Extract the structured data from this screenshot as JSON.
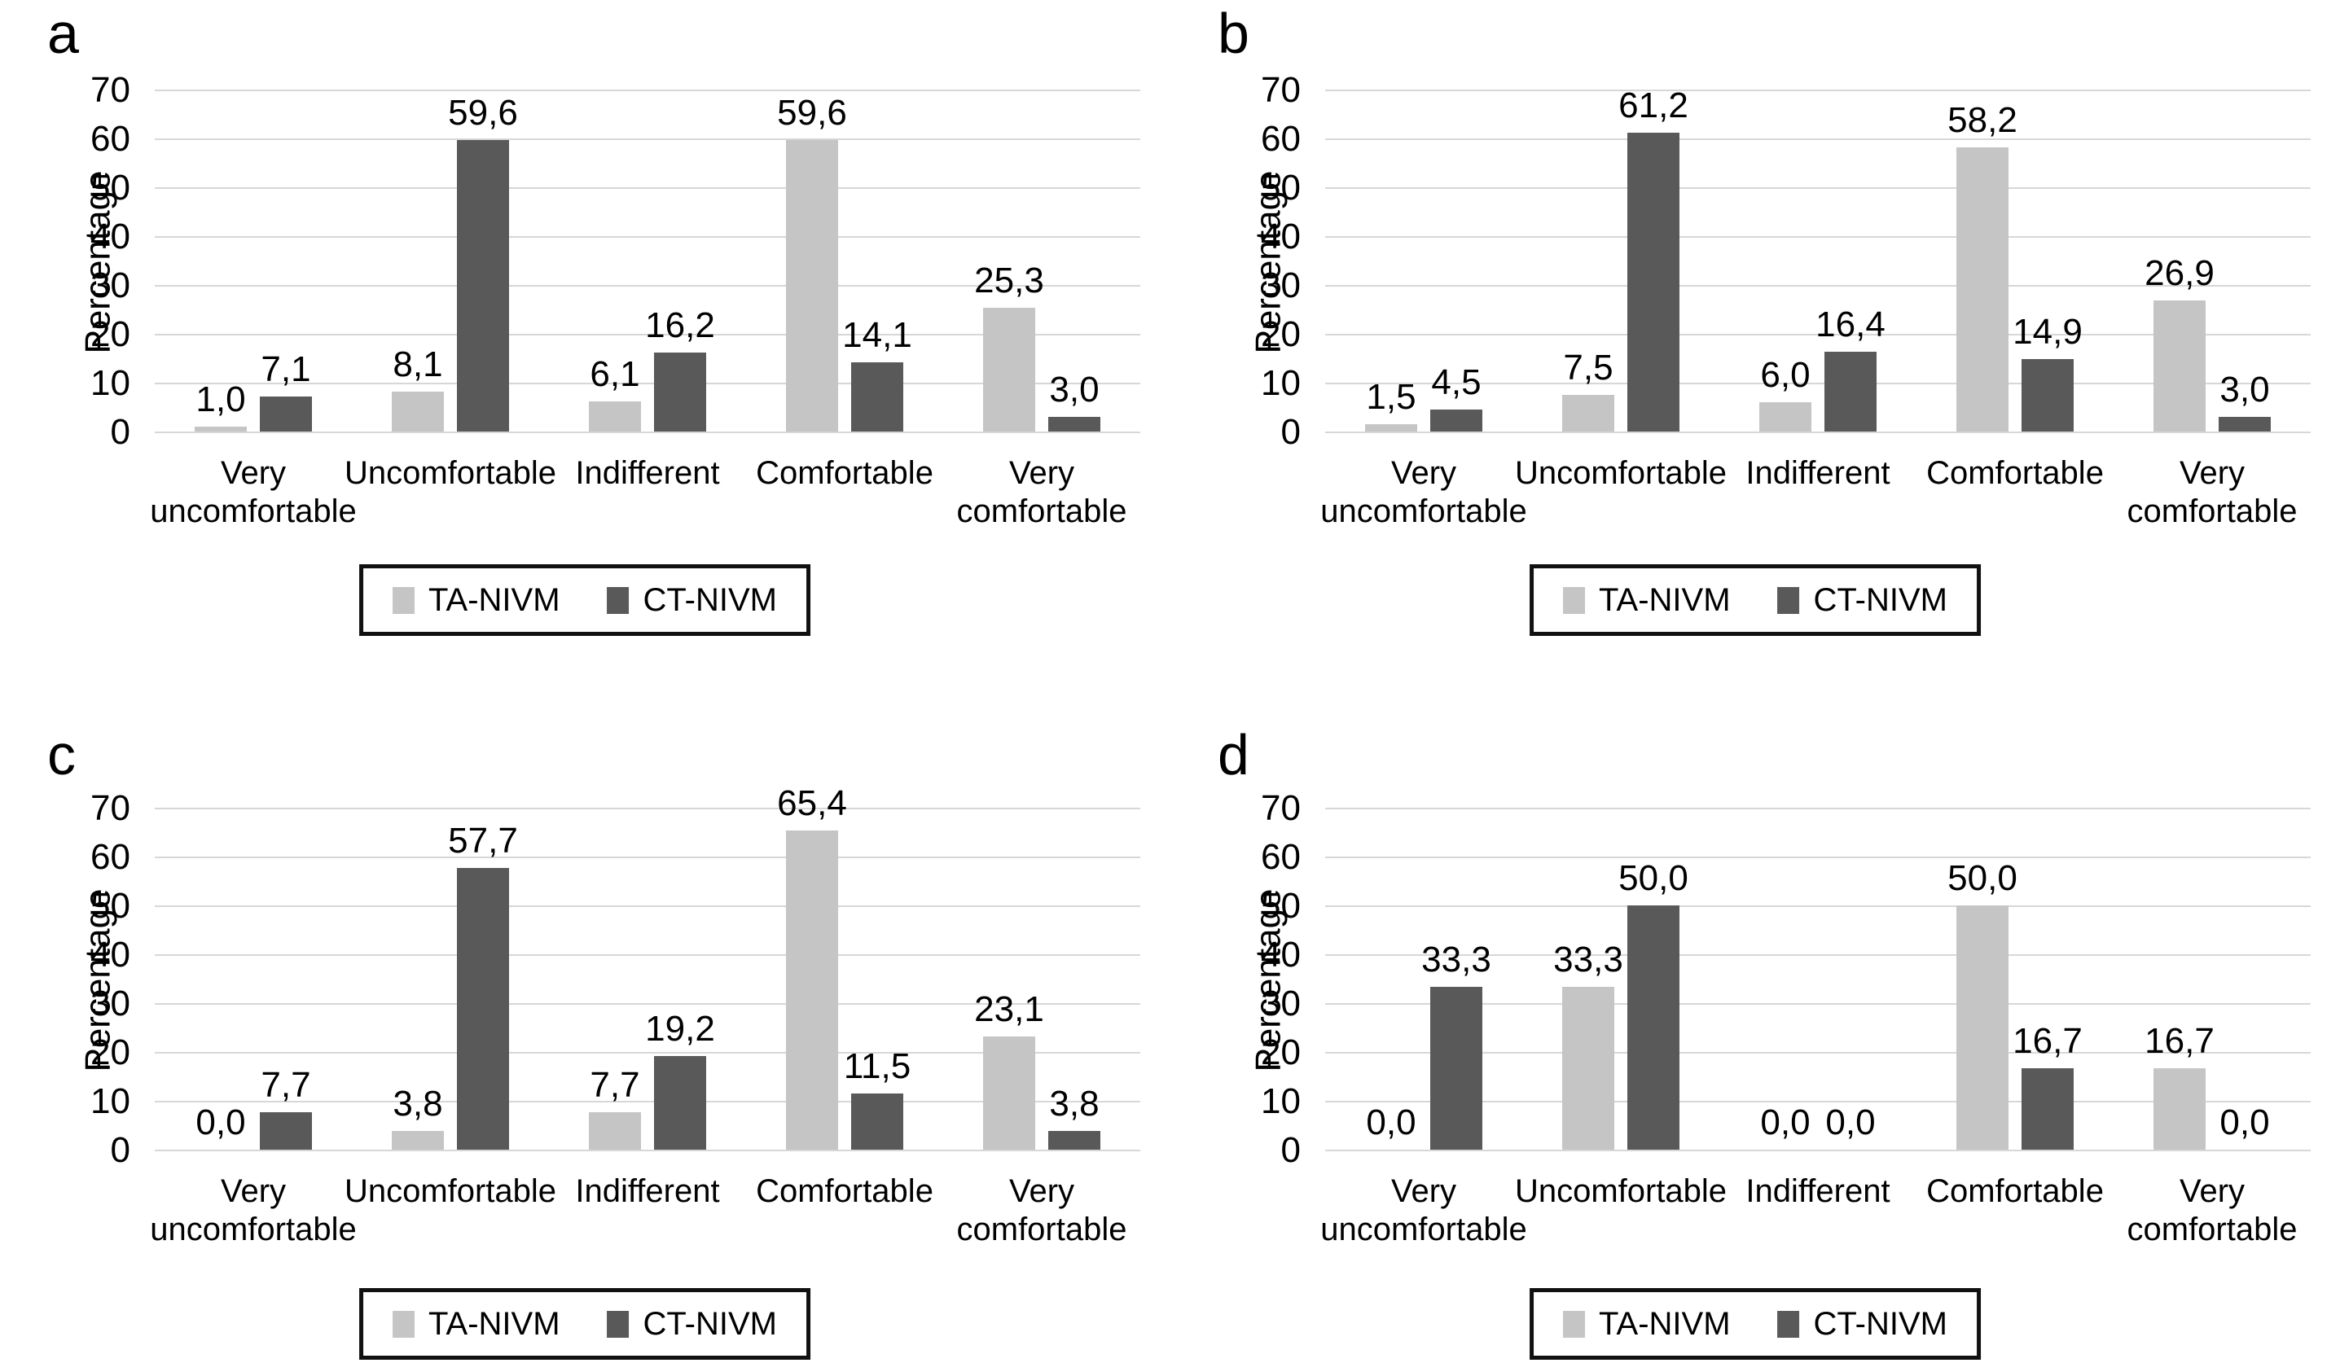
{
  "figure": {
    "panel_letters": [
      "a",
      "b",
      "c",
      "d"
    ]
  },
  "ylabel": "Percentage",
  "y_axis": {
    "min": 0,
    "max": 70,
    "step": 10,
    "tick_labels": [
      "70",
      "60",
      "50",
      "40",
      "30",
      "20",
      "10",
      "0"
    ],
    "grid": true
  },
  "categories": [
    "Very uncomfortable",
    "Uncomfortable",
    "Indifferent",
    "Comfortable",
    "Very comfortable"
  ],
  "category_lines": [
    [
      "Very",
      "uncomfortable"
    ],
    [
      "Uncomfortable"
    ],
    [
      "Indifferent"
    ],
    [
      "Comfortable"
    ],
    [
      "Very",
      "comfortable"
    ]
  ],
  "legend": {
    "position": "bottom",
    "items": [
      {
        "label": "TA-NIVM",
        "color": "#c5c5c5"
      },
      {
        "label": "CT-NIVM",
        "color": "#595959"
      }
    ]
  },
  "colors": {
    "ta_nivm": "#c5c5c5",
    "ct_nivm": "#595959",
    "gridline": "#d7d7d7",
    "text": "#000000",
    "background": "#ffffff",
    "legend_border": "#111111"
  },
  "value_label_decimal_separator": ",",
  "chart_data": [
    {
      "panel": "a",
      "type": "bar",
      "ylabel": "Percentage",
      "ylim": [
        0,
        70
      ],
      "grid": true,
      "legend_position": "bottom",
      "categories": [
        "Very uncomfortable",
        "Uncomfortable",
        "Indifferent",
        "Comfortable",
        "Very comfortable"
      ],
      "series": [
        {
          "name": "TA-NIVM",
          "values": [
            1.0,
            8.1,
            6.1,
            59.6,
            25.3
          ],
          "labels": [
            "1,0",
            "8,1",
            "6,1",
            "59,6",
            "25,3"
          ]
        },
        {
          "name": "CT-NIVM",
          "values": [
            7.1,
            59.6,
            16.2,
            14.1,
            3.0
          ],
          "labels": [
            "7,1",
            "59,6",
            "16,2",
            "14,1",
            "3,0"
          ]
        }
      ]
    },
    {
      "panel": "b",
      "type": "bar",
      "ylabel": "Percentage",
      "ylim": [
        0,
        70
      ],
      "grid": true,
      "legend_position": "bottom",
      "categories": [
        "Very uncomfortable",
        "Uncomfortable",
        "Indifferent",
        "Comfortable",
        "Very comfortable"
      ],
      "series": [
        {
          "name": "TA-NIVM",
          "values": [
            1.5,
            7.5,
            6.0,
            58.2,
            26.9
          ],
          "labels": [
            "1,5",
            "7,5",
            "6,0",
            "58,2",
            "26,9"
          ]
        },
        {
          "name": "CT-NIVM",
          "values": [
            4.5,
            61.2,
            16.4,
            14.9,
            3.0
          ],
          "labels": [
            "4,5",
            "61,2",
            "16,4",
            "14,9",
            "3,0"
          ]
        }
      ]
    },
    {
      "panel": "c",
      "type": "bar",
      "ylabel": "Percentage",
      "ylim": [
        0,
        70
      ],
      "grid": true,
      "legend_position": "bottom",
      "categories": [
        "Very uncomfortable",
        "Uncomfortable",
        "Indifferent",
        "Comfortable",
        "Very comfortable"
      ],
      "series": [
        {
          "name": "TA-NIVM",
          "values": [
            0.0,
            3.8,
            7.7,
            65.4,
            23.1
          ],
          "labels": [
            "0,0",
            "3,8",
            "7,7",
            "65,4",
            "23,1"
          ]
        },
        {
          "name": "CT-NIVM",
          "values": [
            7.7,
            57.7,
            19.2,
            11.5,
            3.8
          ],
          "labels": [
            "7,7",
            "57,7",
            "19,2",
            "11,5",
            "3,8"
          ]
        }
      ]
    },
    {
      "panel": "d",
      "type": "bar",
      "ylabel": "Percentage",
      "ylim": [
        0,
        70
      ],
      "grid": true,
      "legend_position": "bottom",
      "categories": [
        "Very uncomfortable",
        "Uncomfortable",
        "Indifferent",
        "Comfortable",
        "Very comfortable"
      ],
      "series": [
        {
          "name": "TA-NIVM",
          "values": [
            0.0,
            33.3,
            0.0,
            50.0,
            16.7
          ],
          "labels": [
            "0,0",
            "33,3",
            "0,0",
            "50,0",
            "16,7"
          ]
        },
        {
          "name": "CT-NIVM",
          "values": [
            33.3,
            50.0,
            0.0,
            16.7,
            0.0
          ],
          "labels": [
            "33,3",
            "50,0",
            "0,0",
            "16,7",
            "0,0"
          ]
        }
      ]
    }
  ]
}
